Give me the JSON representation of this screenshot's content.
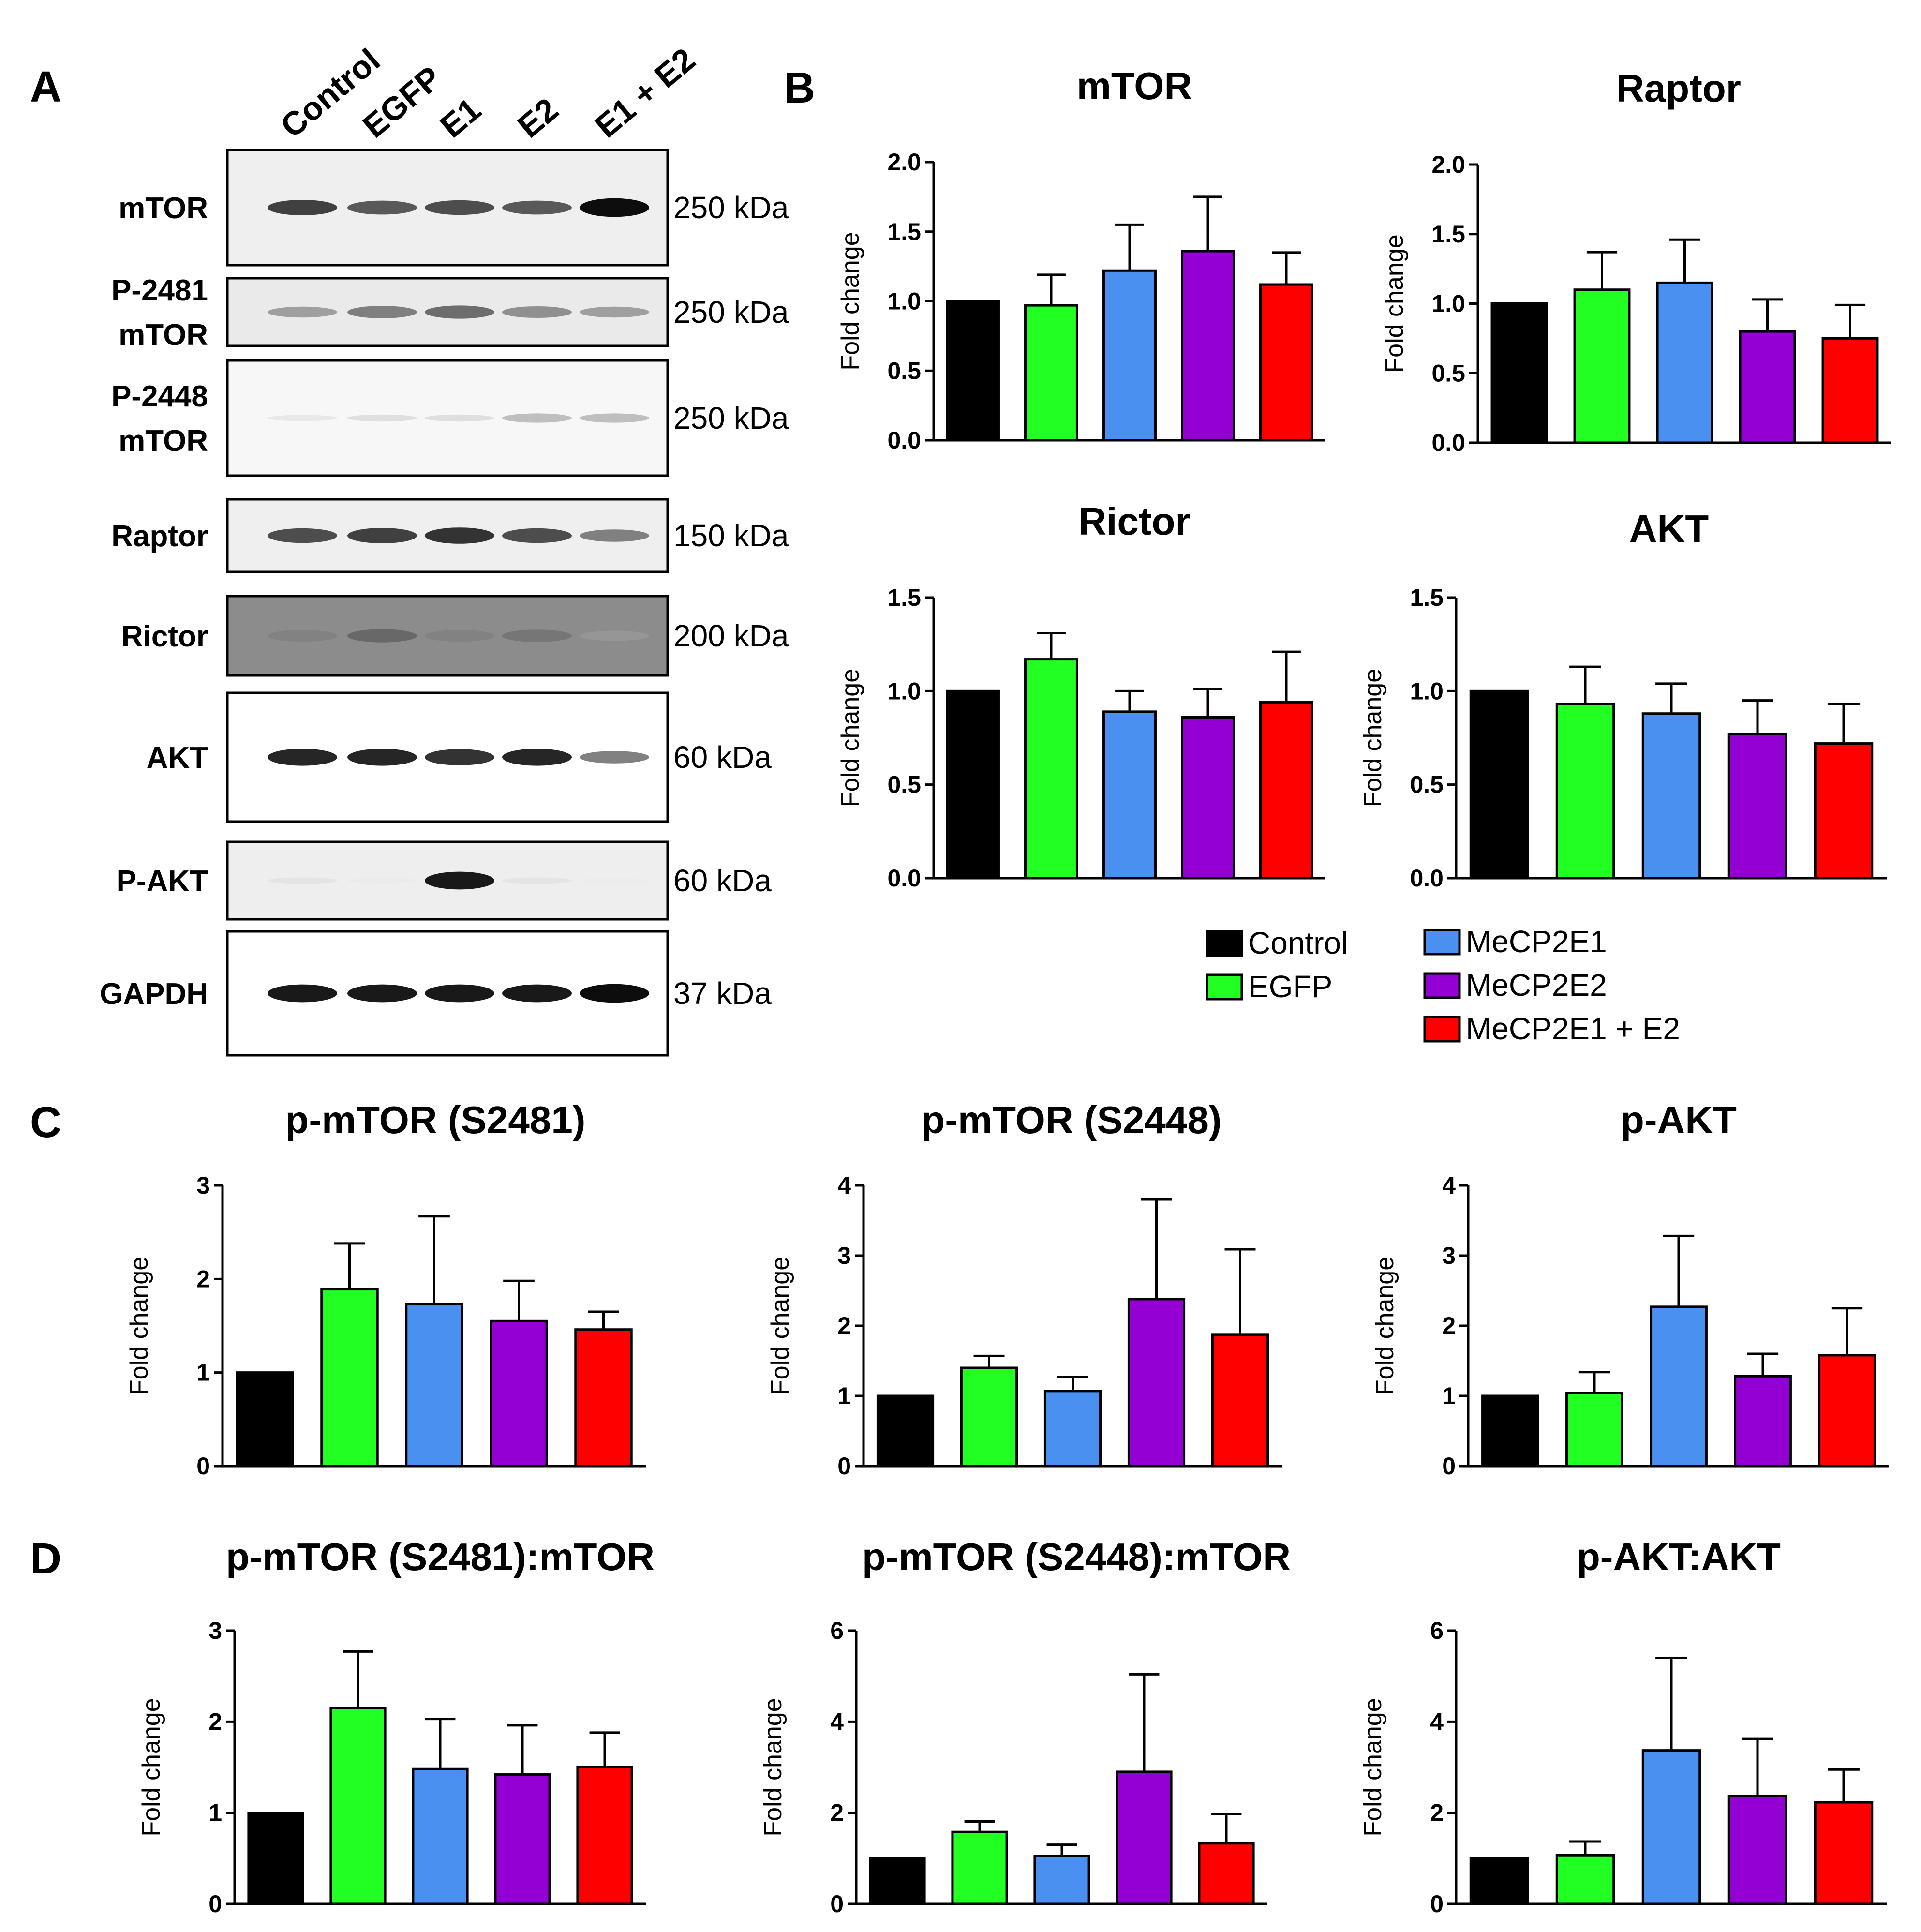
{
  "panels": {
    "A": "A",
    "B": "B",
    "C": "C",
    "D": "D"
  },
  "lane_labels": [
    "Control",
    "EGFP",
    "E1",
    "E2",
    "E1 + E2"
  ],
  "blots": [
    {
      "label_lines": [
        "mTOR"
      ],
      "kda": "250 kDa",
      "bg": "#efefef",
      "intensity": [
        0.75,
        0.65,
        0.7,
        0.65,
        0.95
      ]
    },
    {
      "label_lines": [
        "P-2481",
        "mTOR"
      ],
      "kda": "250 kDa",
      "bg": "#eaeaea",
      "intensity": [
        0.45,
        0.55,
        0.6,
        0.5,
        0.45
      ]
    },
    {
      "label_lines": [
        "P-2448",
        "mTOR"
      ],
      "kda": "250 kDa",
      "bg": "#f7f7f7",
      "intensity": [
        0.15,
        0.2,
        0.2,
        0.35,
        0.35
      ]
    },
    {
      "label_lines": [
        "Raptor"
      ],
      "kda": "150 kDa",
      "bg": "#efefef",
      "intensity": [
        0.7,
        0.75,
        0.8,
        0.7,
        0.55
      ]
    },
    {
      "label_lines": [
        "Rictor"
      ],
      "kda": "200 kDa",
      "bg": "#8c8c8c",
      "intensity": [
        0.5,
        0.6,
        0.5,
        0.55,
        0.4
      ]
    },
    {
      "label_lines": [
        "AKT"
      ],
      "kda": "60 kDa",
      "bg": "#ffffff",
      "intensity": [
        0.85,
        0.85,
        0.8,
        0.85,
        0.55
      ]
    },
    {
      "label_lines": [
        "P-AKT"
      ],
      "kda": "60 kDa",
      "bg": "#eeeeee",
      "intensity": [
        0.15,
        0.1,
        0.9,
        0.15,
        0.08
      ]
    },
    {
      "label_lines": [
        "GAPDH"
      ],
      "kda": "37 kDa",
      "bg": "#ffffff",
      "intensity": [
        0.9,
        0.9,
        0.9,
        0.9,
        0.95
      ]
    }
  ],
  "colors": [
    "#000000",
    "#22ff22",
    "#4a90f0",
    "#9400d3",
    "#ff0000"
  ],
  "legend": [
    {
      "label": "Control",
      "color": "#000000"
    },
    {
      "label": "EGFP",
      "color": "#22ff22"
    },
    {
      "label": "MeCP2E1",
      "color": "#4a90f0"
    },
    {
      "label": "MeCP2E2",
      "color": "#9400d3"
    },
    {
      "label": "MeCP2E1 + E2",
      "color": "#ff0000"
    }
  ],
  "chart_data": [
    {
      "type": "bar",
      "title": "mTOR",
      "ylabel": "Fold change",
      "categories": [
        "Control",
        "EGFP",
        "MeCP2E1",
        "MeCP2E2",
        "MeCP2E1 + E2"
      ],
      "values": [
        1.0,
        0.97,
        1.22,
        1.36,
        1.12
      ],
      "errors": [
        0,
        0.22,
        0.33,
        0.39,
        0.23
      ],
      "ylim": [
        0,
        2.0
      ],
      "yticks": [
        "0.0",
        "0.5",
        "1.0",
        "1.5",
        "2.0"
      ]
    },
    {
      "type": "bar",
      "title": "Raptor",
      "ylabel": "Fold change",
      "categories": [
        "Control",
        "EGFP",
        "MeCP2E1",
        "MeCP2E2",
        "MeCP2E1 + E2"
      ],
      "values": [
        1.0,
        1.1,
        1.15,
        0.8,
        0.75
      ],
      "errors": [
        0,
        0.27,
        0.31,
        0.23,
        0.24
      ],
      "ylim": [
        0,
        2.0
      ],
      "yticks": [
        "0.0",
        "0.5",
        "1.0",
        "1.5",
        "2.0"
      ]
    },
    {
      "type": "bar",
      "title": "Rictor",
      "ylabel": "Fold change",
      "categories": [
        "Control",
        "EGFP",
        "MeCP2E1",
        "MeCP2E2",
        "MeCP2E1 + E2"
      ],
      "values": [
        1.0,
        1.17,
        0.89,
        0.86,
        0.94
      ],
      "errors": [
        0,
        0.14,
        0.11,
        0.15,
        0.27
      ],
      "ylim": [
        0,
        1.5
      ],
      "yticks": [
        "0.0",
        "0.5",
        "1.0",
        "1.5"
      ]
    },
    {
      "type": "bar",
      "title": "AKT",
      "ylabel": "Fold change",
      "categories": [
        "Control",
        "EGFP",
        "MeCP2E1",
        "MeCP2E2",
        "MeCP2E1 + E2"
      ],
      "values": [
        1.0,
        0.93,
        0.88,
        0.77,
        0.72
      ],
      "errors": [
        0,
        0.2,
        0.16,
        0.18,
        0.21
      ],
      "ylim": [
        0,
        1.5
      ],
      "yticks": [
        "0.0",
        "0.5",
        "1.0",
        "1.5"
      ]
    },
    {
      "type": "bar",
      "title": "p-mTOR (S2481)",
      "ylabel": "Fold change",
      "categories": [
        "Control",
        "EGFP",
        "MeCP2E1",
        "MeCP2E2",
        "MeCP2E1 + E2"
      ],
      "values": [
        1.0,
        1.89,
        1.73,
        1.55,
        1.46
      ],
      "errors": [
        0,
        0.49,
        0.94,
        0.43,
        0.19
      ],
      "ylim": [
        0,
        3
      ],
      "yticks": [
        "0",
        "1",
        "2",
        "3"
      ]
    },
    {
      "type": "bar",
      "title": "p-mTOR (S2448)",
      "ylabel": "Fold change",
      "categories": [
        "Control",
        "EGFP",
        "MeCP2E1",
        "MeCP2E2",
        "MeCP2E1 + E2"
      ],
      "values": [
        1.0,
        1.4,
        1.07,
        2.38,
        1.87
      ],
      "errors": [
        0,
        0.17,
        0.2,
        1.42,
        1.22
      ],
      "ylim": [
        0,
        4
      ],
      "yticks": [
        "0",
        "1",
        "2",
        "3",
        "4"
      ]
    },
    {
      "type": "bar",
      "title": "p-AKT",
      "ylabel": "Fold change",
      "categories": [
        "Control",
        "EGFP",
        "MeCP2E1",
        "MeCP2E2",
        "MeCP2E1 + E2"
      ],
      "values": [
        1.0,
        1.04,
        2.27,
        1.28,
        1.58
      ],
      "errors": [
        0,
        0.3,
        1.01,
        0.32,
        0.67
      ],
      "ylim": [
        0,
        4
      ],
      "yticks": [
        "0",
        "1",
        "2",
        "3",
        "4"
      ]
    },
    {
      "type": "bar",
      "title": "p-mTOR (S2481):mTOR",
      "ylabel": "Fold change",
      "categories": [
        "Control",
        "EGFP",
        "MeCP2E1",
        "MeCP2E2",
        "MeCP2E1 + E2"
      ],
      "values": [
        1.0,
        2.15,
        1.48,
        1.42,
        1.5
      ],
      "errors": [
        0,
        0.62,
        0.55,
        0.54,
        0.38
      ],
      "ylim": [
        0,
        3
      ],
      "yticks": [
        "0",
        "1",
        "2",
        "3"
      ]
    },
    {
      "type": "bar",
      "title": "p-mTOR (S2448):mTOR",
      "ylabel": "Fold change",
      "categories": [
        "Control",
        "EGFP",
        "MeCP2E1",
        "MeCP2E2",
        "MeCP2E1 + E2"
      ],
      "values": [
        1.0,
        1.58,
        1.05,
        2.9,
        1.33
      ],
      "errors": [
        0,
        0.23,
        0.25,
        2.14,
        0.64
      ],
      "ylim": [
        0,
        6
      ],
      "yticks": [
        "0",
        "2",
        "4",
        "6"
      ]
    },
    {
      "type": "bar",
      "title": "p-AKT:AKT",
      "ylabel": "Fold change",
      "categories": [
        "Control",
        "EGFP",
        "MeCP2E1",
        "MeCP2E2",
        "MeCP2E1 + E2"
      ],
      "values": [
        1.0,
        1.07,
        3.37,
        2.37,
        2.23
      ],
      "errors": [
        0,
        0.3,
        2.03,
        1.25,
        0.72
      ],
      "ylim": [
        0,
        6
      ],
      "yticks": [
        "0",
        "2",
        "4",
        "6"
      ]
    }
  ]
}
